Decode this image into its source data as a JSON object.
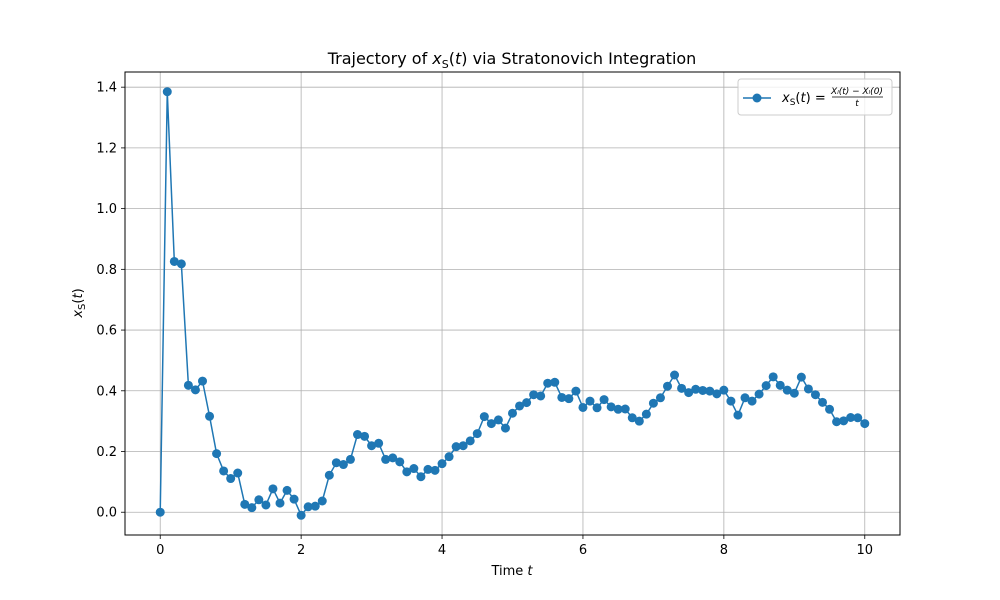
{
  "chart_data": {
    "type": "line",
    "title_parts": [
      "Trajectory of ",
      "x",
      "S",
      "(",
      "t",
      ")",
      " via Stratonovich Integration"
    ],
    "xlabel_parts": [
      "Time ",
      "t"
    ],
    "ylabel_parts": [
      "x",
      "S",
      "(",
      "t",
      ")"
    ],
    "xlim": [
      -0.5,
      10.5
    ],
    "ylim": [
      -0.075,
      1.45
    ],
    "xticks": [
      0,
      2,
      4,
      6,
      8,
      10
    ],
    "xtick_labels": [
      "0",
      "2",
      "4",
      "6",
      "8",
      "10"
    ],
    "yticks": [
      0.0,
      0.2,
      0.4,
      0.6,
      0.8,
      1.0,
      1.2,
      1.4
    ],
    "ytick_labels": [
      "0.0",
      "0.2",
      "0.4",
      "0.6",
      "0.8",
      "1.0",
      "1.2",
      "1.4"
    ],
    "grid": true,
    "legend_position": "top-right",
    "legend": {
      "lhs_parts": [
        "x",
        "S",
        "(",
        "t",
        ") ="
      ],
      "numerator": "Xₗ(t) − Xₗ(0)",
      "denominator": "t"
    },
    "series": [
      {
        "color": "#1f77b4",
        "marker": "circle",
        "x": [
          0.0,
          0.1,
          0.2,
          0.3,
          0.4,
          0.5,
          0.6,
          0.7,
          0.8,
          0.9,
          1.0,
          1.1,
          1.2,
          1.3,
          1.4,
          1.5,
          1.6,
          1.7,
          1.8,
          1.9,
          2.0,
          2.1,
          2.2,
          2.3,
          2.4,
          2.5,
          2.6,
          2.7,
          2.8,
          2.9,
          3.0,
          3.1,
          3.2,
          3.3,
          3.4,
          3.5,
          3.6,
          3.7,
          3.8,
          3.9,
          4.0,
          4.1,
          4.2,
          4.3,
          4.4,
          4.5,
          4.6,
          4.7,
          4.8,
          4.9,
          5.0,
          5.1,
          5.2,
          5.3,
          5.4,
          5.5,
          5.6,
          5.7,
          5.8,
          5.9,
          6.0,
          6.1,
          6.2,
          6.3,
          6.4,
          6.5,
          6.6,
          6.7,
          6.8,
          6.9,
          7.0,
          7.1,
          7.2,
          7.3,
          7.4,
          7.5,
          7.6,
          7.7,
          7.8,
          7.9,
          8.0,
          8.1,
          8.2,
          8.3,
          8.4,
          8.5,
          8.6,
          8.7,
          8.8,
          8.9,
          9.0,
          9.1,
          9.2,
          9.3,
          9.4,
          9.5,
          9.6,
          9.7,
          9.8,
          9.9,
          10.0
        ],
        "y": [
          0.0,
          1.385,
          0.826,
          0.818,
          0.418,
          0.403,
          0.432,
          0.316,
          0.193,
          0.136,
          0.111,
          0.129,
          0.026,
          0.015,
          0.041,
          0.024,
          0.077,
          0.03,
          0.072,
          0.043,
          -0.01,
          0.018,
          0.02,
          0.037,
          0.122,
          0.163,
          0.157,
          0.174,
          0.256,
          0.25,
          0.219,
          0.227,
          0.174,
          0.179,
          0.166,
          0.133,
          0.144,
          0.117,
          0.141,
          0.138,
          0.16,
          0.183,
          0.216,
          0.219,
          0.235,
          0.259,
          0.315,
          0.292,
          0.304,
          0.277,
          0.326,
          0.35,
          0.361,
          0.387,
          0.383,
          0.425,
          0.428,
          0.378,
          0.374,
          0.399,
          0.345,
          0.366,
          0.344,
          0.371,
          0.347,
          0.339,
          0.34,
          0.311,
          0.3,
          0.323,
          0.359,
          0.377,
          0.415,
          0.452,
          0.408,
          0.394,
          0.405,
          0.401,
          0.399,
          0.39,
          0.402,
          0.366,
          0.32,
          0.377,
          0.366,
          0.389,
          0.417,
          0.446,
          0.418,
          0.402,
          0.392,
          0.445,
          0.406,
          0.387,
          0.362,
          0.339,
          0.298,
          0.301,
          0.312,
          0.311,
          0.292
        ]
      }
    ]
  }
}
